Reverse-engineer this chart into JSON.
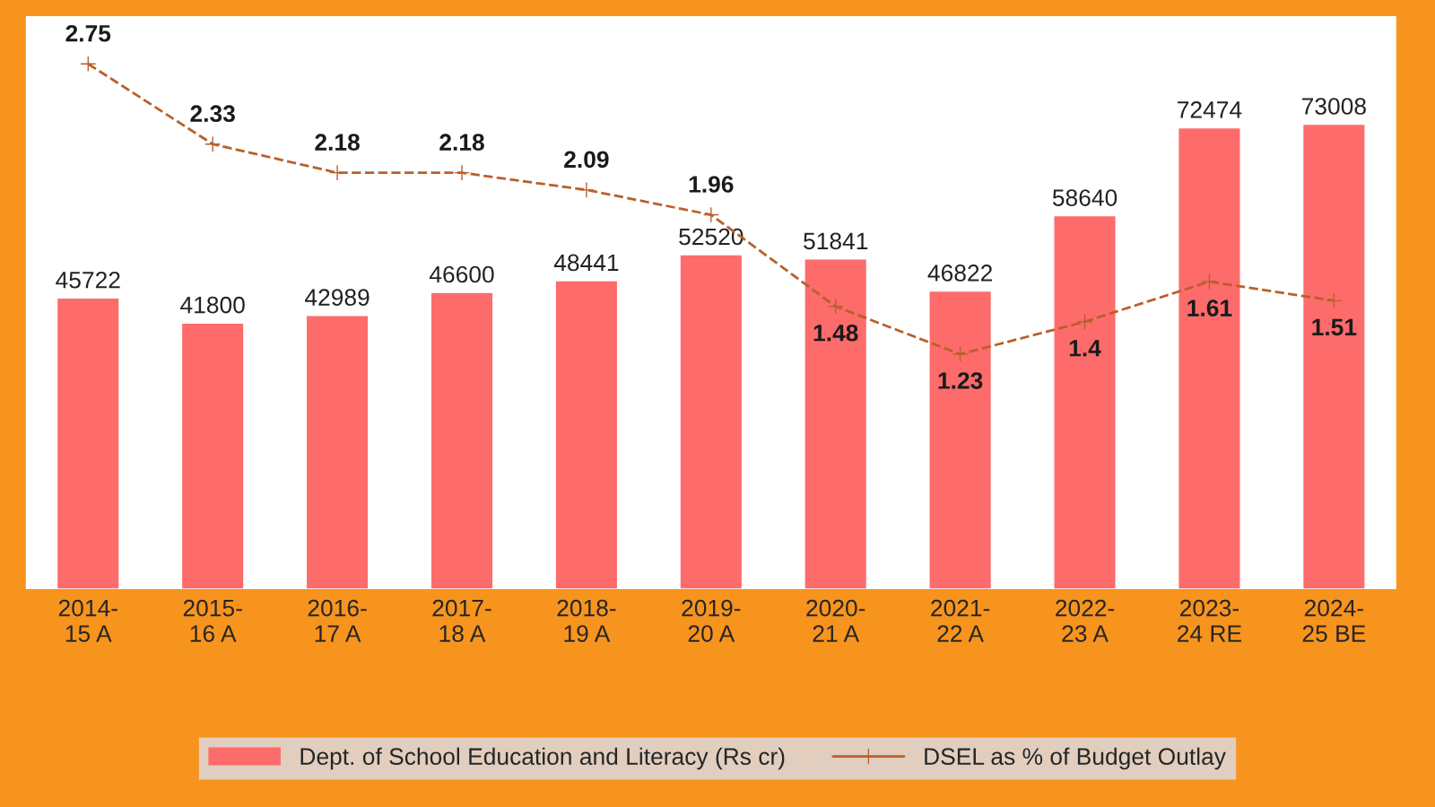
{
  "chart_data": {
    "type": "bar",
    "categories": [
      "2014-15 A",
      "2015-16 A",
      "2016-17 A",
      "2017-18 A",
      "2018-19 A",
      "2019-20 A",
      "2020-21 A",
      "2021-22 A",
      "2022-23 A",
      "2023-24 RE",
      "2024-25 BE"
    ],
    "series": [
      {
        "name": "Dept. of School Education and Literacy (Rs cr)",
        "color": "#fd6b6b",
        "values": [
          45722,
          41800,
          42989,
          46600,
          48441,
          52520,
          51841,
          46822,
          58640,
          72474,
          73008
        ]
      },
      {
        "name": "DSEL as % of Budget Outlay",
        "type": "line",
        "axis": "y2",
        "color": "#b8602a",
        "values": [
          2.75,
          2.33,
          2.18,
          2.18,
          2.09,
          1.96,
          1.48,
          1.23,
          1.4,
          1.61,
          1.51
        ]
      }
    ],
    "ylim": [
      0,
      90000
    ],
    "y2lim": [
      0,
      3
    ],
    "tick_labels": "x",
    "data_labels": true,
    "marker": "cross",
    "line_style": "dashed",
    "grid": false,
    "legend": "bottom"
  }
}
